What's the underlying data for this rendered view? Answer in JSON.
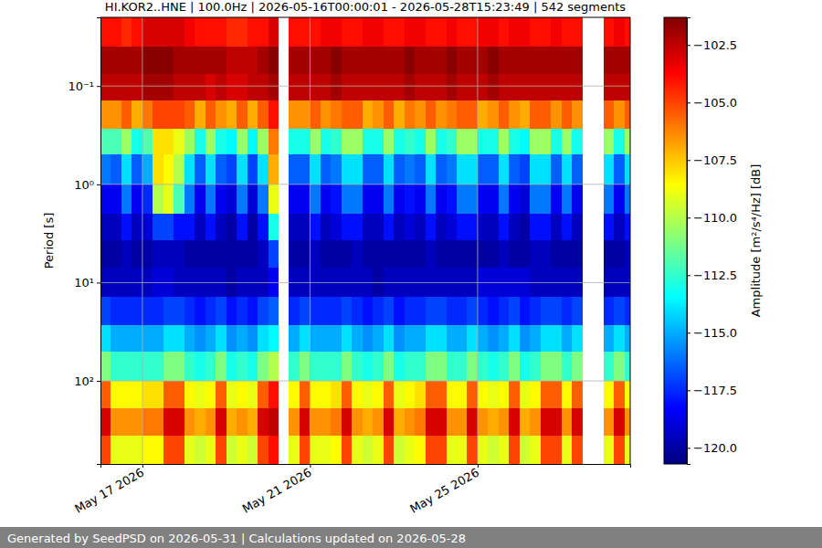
{
  "chart_data": {
    "type": "heatmap",
    "title": "HI.KOR2..HNE | 100.0Hz | 2026-05-16T00:00:01 - 2026-05-28T15:23:49 | 542 segments",
    "ylabel": "Period [s]",
    "footer": "Generated by SeedPSD on 2026-05-31 | Calculations updated on 2026-05-28",
    "log": "y",
    "grid": true,
    "color": "jet",
    "xlim": [
      "2026-05-16T00:00:01",
      "2026-05-28T15:23:49"
    ],
    "xticks": [
      {
        "value": "2026-05-17",
        "label": "May 17 2026"
      },
      {
        "value": "2026-05-21",
        "label": "May 21 2026"
      },
      {
        "value": "2026-05-25",
        "label": "May 25 2026"
      }
    ],
    "ylim": [
      0.02,
      700
    ],
    "yticks": [
      {
        "value": 0.1,
        "label": "10⁻¹"
      },
      {
        "value": 1,
        "label": "10⁰"
      },
      {
        "value": 10,
        "label": "10¹"
      },
      {
        "value": 100,
        "label": "10²"
      }
    ],
    "colorbar": {
      "label": "Amplitude [m²/s⁴/Hz] [dB]",
      "range": [
        -120.7,
        -101.3
      ],
      "ticks": [
        {
          "value": -120,
          "label": "−120.0"
        },
        {
          "value": -117.5,
          "label": "−117.5"
        },
        {
          "value": -115,
          "label": "−115.0"
        },
        {
          "value": -112.5,
          "label": "−112.5"
        },
        {
          "value": -110,
          "label": "−110.0"
        },
        {
          "value": -107.5,
          "label": "−107.5"
        },
        {
          "value": -105,
          "label": "−105.0"
        },
        {
          "value": -102.5,
          "label": "−102.5"
        }
      ]
    },
    "x_bins": [
      "2026-05-16T00:00",
      "2026-05-16T06:00",
      "2026-05-16T12:00",
      "2026-05-16T18:00",
      "2026-05-17T00:00",
      "2026-05-17T06:00",
      "2026-05-17T12:00",
      "2026-05-17T18:00",
      "2026-05-18T00:00",
      "2026-05-18T06:00",
      "2026-05-18T12:00",
      "2026-05-18T18:00",
      "2026-05-19T00:00",
      "2026-05-19T06:00",
      "2026-05-19T12:00",
      "2026-05-19T18:00",
      "2026-05-20T00:00",
      "2026-05-20T06:00",
      "2026-05-20T12:00",
      "2026-05-20T18:00",
      "2026-05-21T00:00",
      "2026-05-21T06:00",
      "2026-05-21T12:00",
      "2026-05-21T18:00",
      "2026-05-22T00:00",
      "2026-05-22T06:00",
      "2026-05-22T12:00",
      "2026-05-22T18:00",
      "2026-05-23T00:00",
      "2026-05-23T06:00",
      "2026-05-23T12:00",
      "2026-05-23T18:00",
      "2026-05-24T00:00",
      "2026-05-24T06:00",
      "2026-05-24T12:00",
      "2026-05-24T18:00",
      "2026-05-25T00:00",
      "2026-05-25T06:00",
      "2026-05-25T12:00",
      "2026-05-25T18:00",
      "2026-05-26T00:00",
      "2026-05-26T06:00",
      "2026-05-26T12:00",
      "2026-05-26T18:00",
      "2026-05-27T00:00",
      "2026-05-27T06:00",
      "2026-05-27T12:00",
      "2026-05-27T18:00",
      "2026-05-28T00:00",
      "2026-05-28T06:00",
      "2026-05-28T12:00",
      "2026-05-28T15:23:49"
    ],
    "y_bins": [
      0.02,
      0.04,
      0.075,
      0.14,
      0.27,
      0.5,
      1,
      2,
      3.7,
      7,
      14,
      27,
      50,
      100,
      190,
      360,
      700
    ],
    "values": [
      [
        -104,
        -104,
        -104.5,
        -104,
        -103,
        -103,
        -103,
        -103,
        -103.5,
        -104,
        -104,
        -104,
        -104.5,
        -104.5,
        -104,
        -104,
        -103,
        null,
        -104,
        -104,
        -104,
        -103.5,
        -103.5,
        -104,
        -104,
        -103.5,
        -103.5,
        -104,
        -104,
        -103.5,
        -103.5,
        -104,
        -104,
        -103.5,
        -104,
        -104,
        -103.5,
        -103.5,
        -104,
        -103.5,
        -103.5,
        -104,
        -104,
        -103.5,
        -104,
        -104,
        null,
        null,
        -104,
        -103.5,
        -104
      ],
      [
        -102,
        -102,
        -102,
        -102,
        -101.5,
        -101.5,
        -101.5,
        -102,
        -102,
        -102,
        -102,
        -102,
        -102.5,
        -102.5,
        -102.5,
        -102,
        -101.5,
        null,
        -102,
        -102,
        -102,
        -102,
        -101.5,
        -102,
        -102,
        -102,
        -102,
        -102,
        -102,
        -101.5,
        -102,
        -102,
        -102,
        -101.5,
        -102,
        -102,
        -102,
        -101.5,
        -102,
        -102,
        -102,
        -102,
        -102,
        -102,
        -102,
        -102,
        null,
        null,
        -102,
        -102,
        -102
      ],
      [
        -102.5,
        -102.5,
        -102.5,
        -102.5,
        -102,
        -102,
        -102,
        -102.5,
        -102.5,
        -102.5,
        -103,
        -102.5,
        -103,
        -103,
        -102.5,
        -102.5,
        -102,
        null,
        -102.5,
        -102.5,
        -102.5,
        -102.5,
        -102,
        -102.5,
        -102.5,
        -102.5,
        -102.5,
        -102.5,
        -102.5,
        -102,
        -102.5,
        -102.5,
        -102.5,
        -102,
        -102.5,
        -102.5,
        -102.5,
        -102,
        -102.5,
        -102.5,
        -102.5,
        -102.5,
        -102.5,
        -102.5,
        -102.5,
        -102.5,
        null,
        null,
        -102.5,
        -102.5,
        -102.5
      ],
      [
        -106.5,
        -106.5,
        -105.5,
        -107,
        -106,
        -105,
        -105,
        -105,
        -105.5,
        -107,
        -105.5,
        -106.5,
        -107,
        -105.5,
        -107,
        -105.5,
        -104,
        null,
        -106.5,
        -106.5,
        -105.5,
        -106.5,
        -106,
        -105.5,
        -105.5,
        -107,
        -106.5,
        -105.5,
        -107,
        -106,
        -106.5,
        -105.5,
        -106.5,
        -106,
        -105.5,
        -105.5,
        -107,
        -106.5,
        -105.5,
        -106.5,
        -107,
        -105.5,
        -105.5,
        -106.5,
        -105.5,
        -106.5,
        null,
        null,
        -105.5,
        -106.5,
        -105.5
      ],
      [
        -112,
        -112,
        -110.5,
        -113,
        -112,
        -108,
        -108,
        -109,
        -110.5,
        -113,
        -110.5,
        -113,
        -113.5,
        -110.5,
        -113.5,
        -110.5,
        -106,
        null,
        -113,
        -113,
        -110.5,
        -113,
        -112.5,
        -110.5,
        -110.5,
        -113,
        -113,
        -110.5,
        -113,
        -112.5,
        -113,
        -110.5,
        -113,
        -112.5,
        -110.5,
        -110.5,
        -113,
        -113,
        -110.5,
        -113,
        -113.5,
        -110.5,
        -110.5,
        -113,
        -110.5,
        -113,
        null,
        null,
        -110.5,
        -113,
        -110.5
      ],
      [
        -116,
        -116.5,
        -114,
        -116.5,
        -115,
        -108,
        -108.5,
        -110,
        -114,
        -116.5,
        -114,
        -116.5,
        -117,
        -114,
        -117,
        -114,
        -107,
        null,
        -116.5,
        -116.5,
        -114,
        -116.5,
        -116,
        -114,
        -114,
        -116.5,
        -116.5,
        -114,
        -116.5,
        -116,
        -116.5,
        -114,
        -116.5,
        -116,
        -114,
        -114,
        -116.5,
        -116.5,
        -114,
        -116.5,
        -117,
        -114,
        -114,
        -116.5,
        -114,
        -116.5,
        null,
        null,
        -114,
        -116.5,
        -114
      ],
      [
        -118.5,
        -118.5,
        -116,
        -118.5,
        -117.5,
        -110,
        -109,
        -112,
        -116,
        -118.5,
        -116,
        -118.5,
        -119,
        -116,
        -119,
        -116,
        -109,
        null,
        -118.5,
        -118.5,
        -116,
        -118.5,
        -118,
        -116,
        -116,
        -118.5,
        -118.5,
        -116,
        -118.5,
        -118,
        -118.5,
        -116,
        -118.5,
        -118,
        -116,
        -116,
        -118.5,
        -118.5,
        -116,
        -118.5,
        -119,
        -116,
        -116,
        -118.5,
        -116,
        -118.5,
        null,
        null,
        -116,
        -118.5,
        -116
      ],
      [
        -119.5,
        -119.5,
        -118,
        -119.5,
        -119,
        -117,
        -117,
        -118,
        -118,
        -119.5,
        -118,
        -119.5,
        -120,
        -118,
        -120,
        -118,
        -113,
        null,
        -119.5,
        -119.5,
        -118,
        -119.5,
        -119,
        -118,
        -118,
        -119.5,
        -119.5,
        -118,
        -119.5,
        -119,
        -119.5,
        -118,
        -119.5,
        -119,
        -118,
        -118,
        -119.5,
        -119.5,
        -118,
        -119.5,
        -120,
        -118,
        -118,
        -119.5,
        -118,
        -119.5,
        null,
        null,
        -118,
        -119.5,
        -118
      ],
      [
        -120,
        -120,
        -119.5,
        -120,
        -120,
        -119.5,
        -119.5,
        -119.5,
        -120,
        -120,
        -120,
        -120,
        -120,
        -120,
        -120,
        -119.5,
        -117,
        null,
        -120,
        -120,
        -119.5,
        -120,
        -120,
        -120,
        -119.5,
        -120,
        -120,
        -120,
        -120,
        -120,
        -120,
        -119.5,
        -120,
        -120,
        -120,
        -120,
        -120,
        -120,
        -119.5,
        -120,
        -120,
        -119.5,
        -119.5,
        -120,
        -120,
        -120,
        null,
        null,
        -120,
        -120,
        -119.5
      ],
      [
        -119.5,
        -119.5,
        -119.5,
        -119.5,
        -119.5,
        -119,
        -119,
        -119.5,
        -119.5,
        -119.5,
        -119.5,
        -119.5,
        -120,
        -119.5,
        -119.5,
        -119.5,
        -118.5,
        null,
        -119.5,
        -119.5,
        -119.5,
        -119.5,
        -119.5,
        -119.5,
        -119.5,
        -119.5,
        -120,
        -119.5,
        -119.5,
        -119.5,
        -119.5,
        -119.5,
        -119.5,
        -119.5,
        -119.5,
        -119.5,
        -119,
        -119,
        -119,
        -119,
        -119,
        -119.5,
        -119.5,
        -119.5,
        -119.5,
        -119.5,
        null,
        null,
        -119.5,
        -119.5,
        -119.5
      ],
      [
        -117,
        -117.5,
        -117.5,
        -117.5,
        -117.5,
        -117.5,
        -117,
        -117,
        -117.5,
        -118,
        -117.5,
        -117,
        -118,
        -117.5,
        -118,
        -117,
        -116.5,
        null,
        -117.5,
        -117,
        -117.5,
        -117.5,
        -117.5,
        -117,
        -117.5,
        -118,
        -117.5,
        -117,
        -118,
        -117.5,
        -117.5,
        -117,
        -117,
        -117.5,
        -117.5,
        -117,
        -117.5,
        -118,
        -117.5,
        -117,
        -118,
        -117.5,
        -117,
        -117,
        -117.5,
        -117,
        null,
        null,
        -117.5,
        -117,
        -117.5
      ],
      [
        -114,
        -115,
        -115,
        -115,
        -115,
        -115,
        -114,
        -114,
        -115,
        -115.5,
        -115,
        -114,
        -115.5,
        -115,
        -115.5,
        -114,
        -113.5,
        null,
        -115,
        -114,
        -115,
        -115,
        -115,
        -114,
        -115,
        -115.5,
        -115,
        -114,
        -115.5,
        -115,
        -115,
        -114,
        -114,
        -115,
        -115,
        -114,
        -115,
        -115.5,
        -115,
        -114,
        -115.5,
        -115,
        -114,
        -114,
        -115,
        -114,
        null,
        null,
        -115,
        -114,
        -115
      ],
      [
        -111,
        -112.5,
        -112.5,
        -112.5,
        -112.5,
        -112.5,
        -111,
        -111,
        -112.5,
        -113,
        -112.5,
        -111,
        -113,
        -112.5,
        -113,
        -111,
        -110,
        null,
        -112.5,
        -111,
        -112.5,
        -112.5,
        -112.5,
        -111,
        -112.5,
        -113,
        -112.5,
        -111,
        -113,
        -112.5,
        -112.5,
        -111,
        -111,
        -112.5,
        -112.5,
        -111,
        -112.5,
        -113,
        -112.5,
        -111,
        -113,
        -112.5,
        -111,
        -111,
        -112.5,
        -111,
        null,
        null,
        -112.5,
        -111,
        -112.5
      ],
      [
        -105.5,
        -108.5,
        -108.5,
        -108.5,
        -108,
        -108,
        -105.5,
        -105.5,
        -108.5,
        -109,
        -108.5,
        -105.5,
        -109,
        -108.5,
        -109,
        -105.5,
        -104,
        null,
        -108.5,
        -105.5,
        -108.5,
        -108.5,
        -108,
        -105.5,
        -108.5,
        -109,
        -108.5,
        -105.5,
        -109,
        -108.5,
        -108,
        -105.5,
        -105.5,
        -108.5,
        -108.5,
        -105.5,
        -108.5,
        -109,
        -108.5,
        -105.5,
        -109,
        -108.5,
        -105.5,
        -105.5,
        -108.5,
        -105.5,
        null,
        null,
        -108.5,
        -105.5,
        -108.5
      ],
      [
        -103,
        -106.5,
        -106.5,
        -106.5,
        -106,
        -106,
        -103,
        -103,
        -106.5,
        -107,
        -106.5,
        -103,
        -107,
        -106.5,
        -107,
        -103,
        -102.5,
        null,
        -106.5,
        -103,
        -106.5,
        -106.5,
        -106,
        -103,
        -106.5,
        -107,
        -106.5,
        -103,
        -107,
        -106.5,
        -106,
        -103,
        -103,
        -106.5,
        -106.5,
        -103,
        -106.5,
        -107,
        -106.5,
        -103,
        -107,
        -106.5,
        -103,
        -103,
        -106.5,
        -103,
        null,
        null,
        -106.5,
        -103,
        -106.5
      ],
      [
        -105,
        -109,
        -109,
        -109,
        -108.5,
        -108.5,
        -105,
        -105,
        -109,
        -109.5,
        -109,
        -105,
        -109.5,
        -109,
        -109.5,
        -105,
        -104,
        null,
        -109,
        -105,
        -109,
        -109,
        -108.5,
        -105,
        -109,
        -109.5,
        -109,
        -105,
        -109.5,
        -109,
        -108.5,
        -105,
        -105,
        -109,
        -109,
        -105,
        -109,
        -109.5,
        -109,
        -105,
        -109.5,
        -109,
        -105,
        -105,
        -109,
        -105,
        null,
        null,
        -109,
        -105,
        -109
      ]
    ]
  }
}
